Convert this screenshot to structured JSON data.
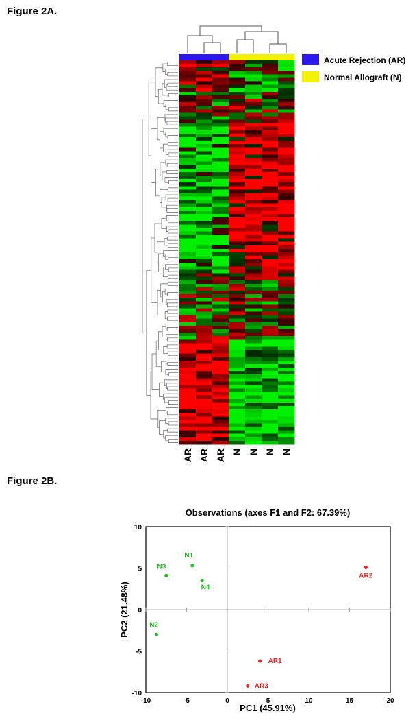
{
  "figure_a": {
    "label": "Figure 2A.",
    "legend": [
      {
        "label": "Acute Rejection (AR)",
        "color": "#2b18f0"
      },
      {
        "label": "Normal Allograft (N)",
        "color": "#f2f200"
      }
    ],
    "columns": [
      "AR",
      "AR",
      "AR",
      "N",
      "N",
      "N",
      "N"
    ],
    "column_groups": [
      "AR",
      "AR",
      "AR",
      "N",
      "N",
      "N",
      "N"
    ],
    "colors": {
      "up": "#ff0000",
      "down": "#00ee00",
      "mid": "#000000",
      "AR": "#2b18f0",
      "N": "#f2f200"
    }
  },
  "figure_b": {
    "label": "Figure 2B.",
    "chart_data": {
      "type": "scatter",
      "title": "Observations (axes F1 and F2: 67.39%)",
      "xlabel": "PC1 (45.91%)",
      "ylabel": "PC2 (21.48%)",
      "xlim": [
        -10,
        20
      ],
      "ylim": [
        -10,
        10
      ],
      "xticks": [
        -10,
        -5,
        0,
        5,
        10,
        15,
        20
      ],
      "yticks": [
        10,
        5,
        0,
        -5,
        -10
      ],
      "series": [
        {
          "group": "N",
          "color": "#22bb22",
          "points": [
            {
              "label": "N1",
              "x": -4.3,
              "y": 5.3
            },
            {
              "label": "N3",
              "x": -7.5,
              "y": 4.1
            },
            {
              "label": "N4",
              "x": -3.1,
              "y": 3.5
            },
            {
              "label": "N2",
              "x": -8.7,
              "y": -3.0
            }
          ]
        },
        {
          "group": "AR",
          "color": "#ee2222",
          "points": [
            {
              "label": "AR2",
              "x": 17.0,
              "y": 5.1
            },
            {
              "label": "AR1",
              "x": 4.0,
              "y": -6.2
            },
            {
              "label": "AR3",
              "x": 2.5,
              "y": -9.2
            }
          ]
        }
      ]
    }
  }
}
